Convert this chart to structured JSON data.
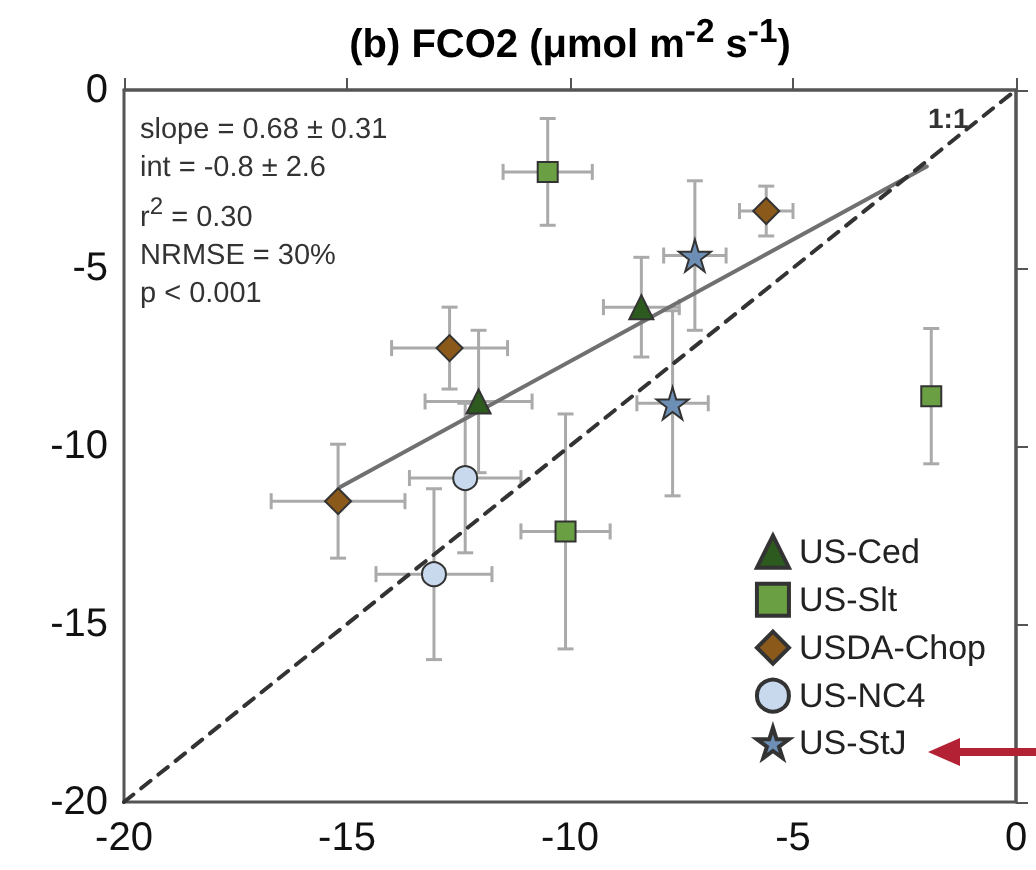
{
  "chart_data": {
    "type": "scatter",
    "title": "(b) FCO2 (μmol m$^{-2}$ s$^{-1}$)",
    "xlim": [
      -20,
      0
    ],
    "xticks": [
      -20,
      -15,
      -10,
      -5,
      0
    ],
    "ylim": [
      -20,
      0
    ],
    "yticks": [
      -20,
      -15,
      -10,
      -5,
      0
    ],
    "grid": false,
    "legend": "bottom right",
    "annotations": [
      "slope = 0.68 ± 0.31",
      "int = -0.8 ± 2.6",
      "r$^{2}$ = 0.30",
      "NRMSE = 30%",
      "p < 0.001"
    ],
    "series": [
      {
        "name": "US-Ced",
        "color": "#2d5a1e",
        "marker": "triangle",
        "x": [
          -8.4,
          -12.05
        ],
        "values": [
          -6.1,
          -8.75
        ],
        "xerrors": [
          0.85,
          1.2
        ],
        "errors": [
          1.4,
          2.0
        ]
      },
      {
        "name": "US-Slt",
        "color": "#6a9f44",
        "marker": "square",
        "x": [
          -10.5,
          -1.9,
          -10.1
        ],
        "values": [
          -2.3,
          -8.6,
          -12.4
        ],
        "xerrors": [
          1.0,
          null,
          1.0
        ],
        "errors": [
          1.5,
          1.9,
          3.3
        ]
      },
      {
        "name": "USDA-Chop",
        "color": "#8b5a1a",
        "marker": "diamond",
        "x": [
          -5.6,
          -12.7,
          -15.2
        ],
        "values": [
          -3.4,
          -7.25,
          -11.55
        ],
        "xerrors": [
          0.6,
          1.3,
          1.5
        ],
        "errors": [
          0.7,
          1.15,
          1.6
        ]
      },
      {
        "name": "US-NC4",
        "color": "#c8d9ee",
        "marker": "circle",
        "x": [
          -12.35,
          -13.05
        ],
        "values": [
          -10.9,
          -13.6
        ],
        "xerrors": [
          1.25,
          1.3
        ],
        "errors": [
          2.1,
          2.4
        ]
      },
      {
        "name": "US-StJ",
        "color": "#6e8fb5",
        "marker": "star",
        "x": [
          -7.2,
          -7.7
        ],
        "values": [
          -4.65,
          -8.8
        ],
        "xerrors": [
          0.7,
          0.8
        ],
        "errors": [
          2.1,
          2.6
        ]
      },
      {
        "type": "line",
        "color": "#707070",
        "line_style": "solid",
        "x": [
          -15.15,
          -2.0
        ],
        "values": [
          -11.15,
          -2.15
        ]
      },
      {
        "type": "line",
        "name": "1:1",
        "color": "#333333",
        "line_style": "dashed",
        "x": [
          -20,
          0
        ],
        "values": [
          -20,
          0
        ]
      }
    ]
  }
}
